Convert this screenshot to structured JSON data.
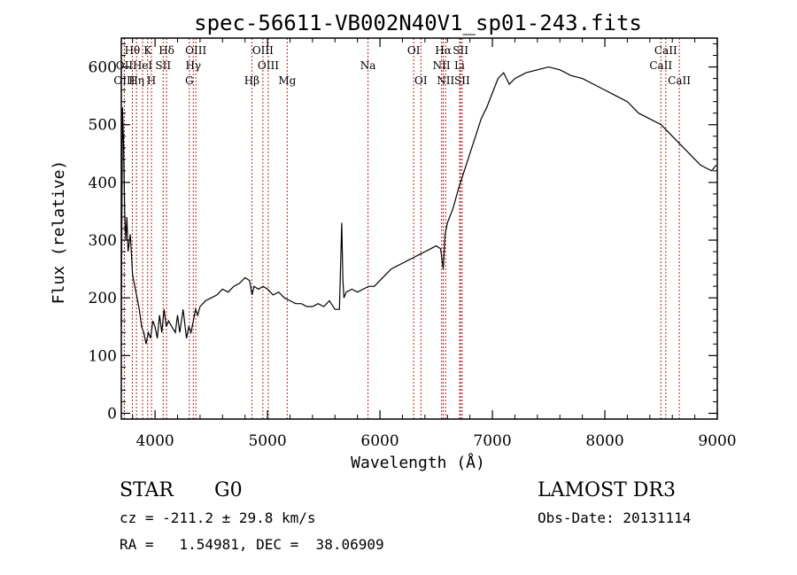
{
  "chart_data": {
    "type": "line",
    "title": "spec-56611-VB002N40V1_sp01-243.fits",
    "xlabel": "Wavelength (Å)",
    "ylabel": "Flux (relative)",
    "xlim": [
      3700,
      9000
    ],
    "ylim": [
      -10,
      650
    ],
    "xticks": [
      4000,
      5000,
      6000,
      7000,
      8000,
      9000
    ],
    "yticks": [
      0,
      100,
      200,
      300,
      400,
      500,
      600
    ],
    "series": [
      {
        "name": "flux",
        "x": [
          3700,
          3710,
          3720,
          3730,
          3740,
          3750,
          3760,
          3780,
          3800,
          3820,
          3840,
          3860,
          3880,
          3900,
          3920,
          3940,
          3960,
          3980,
          4000,
          4020,
          4040,
          4060,
          4080,
          4100,
          4120,
          4150,
          4180,
          4200,
          4220,
          4250,
          4280,
          4300,
          4320,
          4340,
          4360,
          4380,
          4400,
          4450,
          4500,
          4550,
          4600,
          4650,
          4700,
          4750,
          4800,
          4840,
          4862,
          4880,
          4920,
          4960,
          5000,
          5050,
          5100,
          5150,
          5200,
          5250,
          5300,
          5350,
          5400,
          5450,
          5500,
          5550,
          5600,
          5640,
          5660,
          5670,
          5680,
          5700,
          5750,
          5800,
          5850,
          5900,
          5950,
          6000,
          6050,
          6100,
          6150,
          6200,
          6250,
          6300,
          6350,
          6400,
          6450,
          6500,
          6540,
          6563,
          6580,
          6600,
          6650,
          6700,
          6750,
          6800,
          6850,
          6900,
          6950,
          7000,
          7050,
          7100,
          7150,
          7200,
          7300,
          7400,
          7500,
          7600,
          7700,
          7800,
          7900,
          8000,
          8100,
          8200,
          8300,
          8400,
          8500,
          8550,
          8600,
          8650,
          8700,
          8750,
          8800,
          8850,
          8900,
          8950,
          8990
        ],
        "values": [
          150,
          530,
          470,
          350,
          300,
          340,
          280,
          310,
          240,
          220,
          200,
          180,
          150,
          140,
          120,
          140,
          130,
          160,
          150,
          130,
          170,
          140,
          180,
          150,
          160,
          150,
          140,
          170,
          140,
          180,
          130,
          150,
          140,
          160,
          180,
          170,
          185,
          195,
          200,
          205,
          215,
          210,
          220,
          225,
          235,
          230,
          205,
          220,
          215,
          220,
          215,
          205,
          210,
          200,
          195,
          190,
          190,
          185,
          185,
          190,
          185,
          195,
          180,
          180,
          330,
          230,
          200,
          210,
          215,
          210,
          215,
          220,
          220,
          230,
          240,
          250,
          255,
          260,
          265,
          270,
          275,
          280,
          285,
          290,
          285,
          250,
          310,
          330,
          355,
          390,
          420,
          450,
          480,
          510,
          530,
          555,
          580,
          590,
          570,
          580,
          590,
          595,
          600,
          595,
          585,
          580,
          570,
          560,
          550,
          540,
          520,
          510,
          500,
          490,
          480,
          470,
          460,
          450,
          440,
          430,
          425,
          420,
          430
        ]
      }
    ],
    "emission_lines": [
      {
        "name": "Hθ",
        "wavelength": 3798,
        "row": 1
      },
      {
        "name": "OII",
        "wavelength": 3727,
        "row": 2
      },
      {
        "name": "OIII",
        "wavelength": 3727,
        "row": 3
      },
      {
        "name": "K",
        "wavelength": 3934,
        "row": 1
      },
      {
        "name": "HeI",
        "wavelength": 3889,
        "row": 2
      },
      {
        "name": "Hη",
        "wavelength": 3835,
        "row": 3
      },
      {
        "name": "H",
        "wavelength": 3968,
        "row": 3
      },
      {
        "name": "Hδ",
        "wavelength": 4102,
        "row": 1
      },
      {
        "name": "SII",
        "wavelength": 4072,
        "row": 2
      },
      {
        "name": "OIII",
        "wavelength": 4363,
        "row": 1
      },
      {
        "name": "Hγ",
        "wavelength": 4340,
        "row": 2
      },
      {
        "name": "G",
        "wavelength": 4305,
        "row": 3
      },
      {
        "name": "OIII",
        "wavelength": 4959,
        "row": 1
      },
      {
        "name": "OIII",
        "wavelength": 5007,
        "row": 2
      },
      {
        "name": "Hβ",
        "wavelength": 4861,
        "row": 3
      },
      {
        "name": "Mg",
        "wavelength": 5175,
        "row": 3
      },
      {
        "name": "Na",
        "wavelength": 5894,
        "row": 2
      },
      {
        "name": "OI",
        "wavelength": 6300,
        "row": 1
      },
      {
        "name": "OI",
        "wavelength": 6364,
        "row": 3
      },
      {
        "name": "Hα",
        "wavelength": 6563,
        "row": 1
      },
      {
        "name": "NII",
        "wavelength": 6548,
        "row": 2
      },
      {
        "name": "NII",
        "wavelength": 6584,
        "row": 3
      },
      {
        "name": "SII",
        "wavelength": 6717,
        "row": 1
      },
      {
        "name": "Li",
        "wavelength": 6708,
        "row": 2
      },
      {
        "name": "SII",
        "wavelength": 6731,
        "row": 3
      },
      {
        "name": "CaII",
        "wavelength": 8542,
        "row": 1
      },
      {
        "name": "CaII",
        "wavelength": 8498,
        "row": 2
      },
      {
        "name": "CaII",
        "wavelength": 8662,
        "row": 3
      }
    ]
  },
  "info": {
    "class": "STAR",
    "subclass": "G0",
    "survey": "LAMOST DR3",
    "cz": "cz = -211.2 ± 29.8 km/s",
    "obs_date": "Obs-Date: 20131114",
    "coords": "RA =   1.54981, DEC =  38.06909"
  },
  "colors": {
    "line": "#000000",
    "marker": "#b22222",
    "axis": "#000000"
  }
}
